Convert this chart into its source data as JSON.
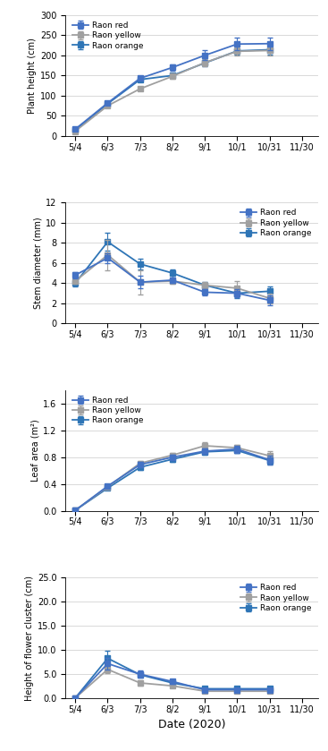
{
  "x_labels": [
    "5/4",
    "6/3",
    "7/3",
    "8/2",
    "9/1",
    "10/1",
    "10/31",
    "11/30"
  ],
  "x_positions": [
    0,
    1,
    2,
    3,
    4,
    5,
    6,
    7
  ],
  "plant_height": {
    "ylabel": "Plant height (cm)",
    "ylim": [
      0,
      300
    ],
    "yticks": [
      0,
      50,
      100,
      150,
      200,
      250,
      300
    ],
    "legend_loc": "upper left",
    "red": [
      17,
      82,
      143,
      170,
      200,
      228,
      229
    ],
    "yellow": [
      12,
      75,
      117,
      148,
      182,
      210,
      212
    ],
    "orange": [
      15,
      80,
      140,
      150,
      181,
      211,
      214
    ],
    "red_err": [
      2,
      4,
      6,
      8,
      12,
      15,
      15
    ],
    "yellow_err": [
      2,
      3,
      5,
      7,
      8,
      10,
      12
    ],
    "orange_err": [
      2,
      4,
      5,
      6,
      8,
      10,
      12
    ]
  },
  "stem_diameter": {
    "ylabel": "Stem diameter (mm)",
    "ylim": [
      0,
      12
    ],
    "yticks": [
      0,
      2,
      4,
      6,
      8,
      10,
      12
    ],
    "legend_loc": "upper right",
    "red": [
      4.8,
      6.5,
      4.1,
      4.3,
      3.1,
      3.0,
      2.3
    ],
    "yellow": [
      4.2,
      6.8,
      4.1,
      4.2,
      3.8,
      3.5,
      2.5
    ],
    "orange": [
      4.0,
      8.1,
      5.9,
      5.0,
      3.8,
      3.0,
      3.2
    ],
    "red_err": [
      0.3,
      0.5,
      0.6,
      0.3,
      0.3,
      0.4,
      0.5
    ],
    "yellow_err": [
      0.3,
      1.5,
      1.2,
      0.3,
      0.3,
      0.7,
      0.5
    ],
    "orange_err": [
      0.3,
      0.9,
      0.5,
      0.4,
      0.3,
      0.5,
      0.5
    ]
  },
  "leaf_area": {
    "ylabel": "Leaf area (m²)",
    "ylim": [
      0.0,
      1.8
    ],
    "yticks": [
      0.0,
      0.4,
      0.8,
      1.2,
      1.6
    ],
    "legend_loc": "upper left",
    "red": [
      0.01,
      0.37,
      0.69,
      0.8,
      0.89,
      0.92,
      0.76
    ],
    "yellow": [
      0.01,
      0.36,
      0.71,
      0.83,
      0.97,
      0.94,
      0.82
    ],
    "orange": [
      0.01,
      0.34,
      0.65,
      0.77,
      0.88,
      0.9,
      0.75
    ],
    "red_err": [
      0.005,
      0.02,
      0.04,
      0.04,
      0.04,
      0.05,
      0.07
    ],
    "yellow_err": [
      0.005,
      0.02,
      0.04,
      0.04,
      0.05,
      0.04,
      0.07
    ],
    "orange_err": [
      0.005,
      0.02,
      0.04,
      0.04,
      0.04,
      0.04,
      0.06
    ]
  },
  "flower_cluster": {
    "ylabel": "Height of flower cluster (cm)",
    "ylim": [
      0.0,
      25.0
    ],
    "yticks": [
      0.0,
      5.0,
      10.0,
      15.0,
      20.0,
      25.0
    ],
    "legend_loc": "upper right",
    "red": [
      0.1,
      7.2,
      5.0,
      3.5,
      1.8,
      1.8,
      1.8
    ],
    "yellow": [
      0.1,
      6.0,
      3.2,
      2.6,
      1.5,
      1.5,
      1.5
    ],
    "orange": [
      0.1,
      8.3,
      4.9,
      3.2,
      2.0,
      2.0,
      2.0
    ],
    "red_err": [
      0.05,
      1.2,
      0.7,
      0.4,
      0.2,
      0.2,
      0.2
    ],
    "yellow_err": [
      0.05,
      0.8,
      0.6,
      0.4,
      0.2,
      0.2,
      0.2
    ],
    "orange_err": [
      0.05,
      1.5,
      0.5,
      0.3,
      0.2,
      0.2,
      0.2
    ]
  },
  "color_red": "#4472C4",
  "color_yellow": "#A0A0A0",
  "color_orange": "#2E75B6",
  "marker": "s",
  "linewidth": 1.3,
  "markersize": 4,
  "xlabel": "Date (2020)",
  "legend_labels": [
    "Raon red",
    "Raon yellow",
    "Raon orange"
  ],
  "background": "#FFFFFF",
  "grid_color": "#D3D3D3"
}
